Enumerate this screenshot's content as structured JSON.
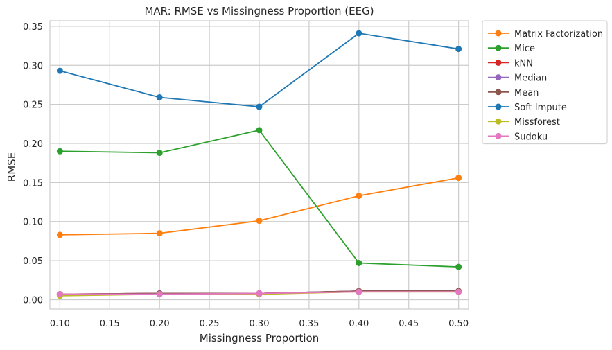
{
  "chart_data": {
    "type": "line",
    "title": "MAR: RMSE vs Missingness Proportion (EEG)",
    "xlabel": "Missingness Proportion",
    "ylabel": "RMSE",
    "xlim": [
      0.09,
      0.51
    ],
    "ylim": [
      -0.012,
      0.357
    ],
    "xticks": [
      0.1,
      0.15,
      0.2,
      0.25,
      0.3,
      0.35,
      0.4,
      0.45,
      0.5
    ],
    "yticks": [
      0.0,
      0.05,
      0.1,
      0.15,
      0.2,
      0.25,
      0.3,
      0.35
    ],
    "grid": true,
    "legend_position": "outside-top-right",
    "x": [
      0.1,
      0.2,
      0.3,
      0.4,
      0.5
    ],
    "series": [
      {
        "name": "Matrix Factorization",
        "color": "#ff7f0e",
        "values": [
          0.083,
          0.085,
          0.101,
          0.133,
          0.156
        ]
      },
      {
        "name": "Mice",
        "color": "#2ca02c",
        "values": [
          0.19,
          0.188,
          0.217,
          0.047,
          0.042
        ]
      },
      {
        "name": "kNN",
        "color": "#d62728",
        "values": [
          0.007,
          0.008,
          0.008,
          0.011,
          0.011
        ]
      },
      {
        "name": "Median",
        "color": "#9467bd",
        "values": [
          0.007,
          0.008,
          0.008,
          0.011,
          0.011
        ]
      },
      {
        "name": "Mean",
        "color": "#8c564b",
        "values": [
          0.007,
          0.008,
          0.008,
          0.011,
          0.011
        ]
      },
      {
        "name": "Soft Impute",
        "color": "#1f77b4",
        "values": [
          0.293,
          0.259,
          0.247,
          0.341,
          0.321
        ]
      },
      {
        "name": "Missforest",
        "color": "#bcbd22",
        "values": [
          0.005,
          0.007,
          0.007,
          0.01,
          0.01
        ]
      },
      {
        "name": "Sudoku",
        "color": "#e377c2",
        "values": [
          0.007,
          0.007,
          0.008,
          0.01,
          0.01
        ]
      }
    ]
  }
}
